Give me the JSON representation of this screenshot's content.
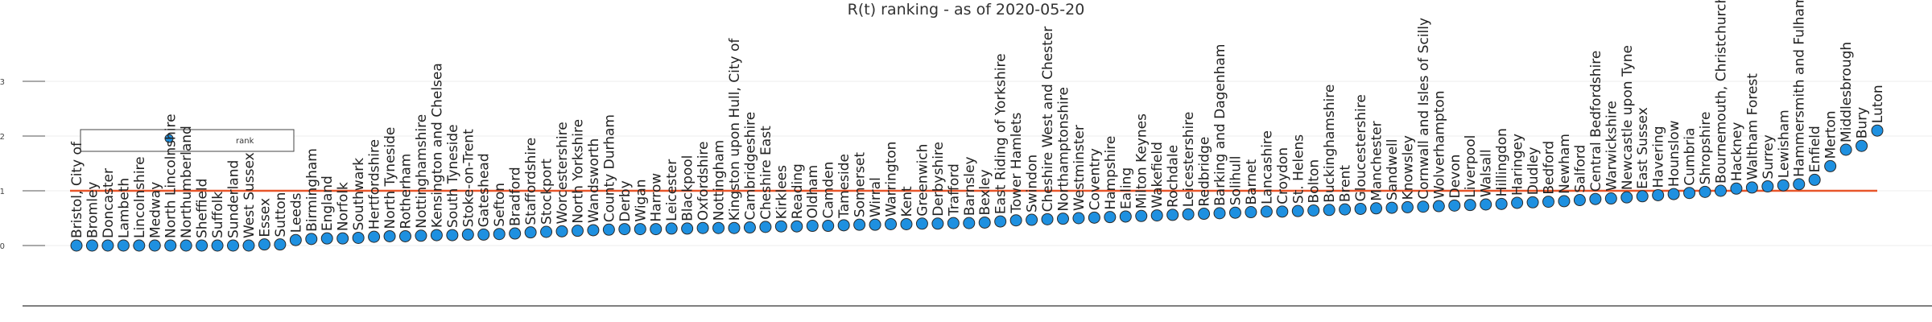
{
  "chart_data": {
    "type": "scatter",
    "title": "R(t) ranking - as of 2020-05-20",
    "ytick_labels": [
      "0",
      "1",
      "2",
      "3"
    ],
    "ylim": [
      -0.9,
      3.6
    ],
    "reference_line": {
      "y": 1.0,
      "color": "#e8562a"
    },
    "marker_color": "#1e90e0",
    "legend": {
      "entries": [
        "rank"
      ],
      "placement": "top-left"
    },
    "x_label_rotation": -90,
    "series": [
      {
        "name": "rank",
        "points": [
          {
            "label": "Bristol, City of",
            "y": 0.0
          },
          {
            "label": "Bromley",
            "y": 0.0
          },
          {
            "label": "Doncaster",
            "y": 0.0
          },
          {
            "label": "Lambeth",
            "y": 0.0
          },
          {
            "label": "Lincolnshire",
            "y": 0.0
          },
          {
            "label": "Medway",
            "y": 0.0
          },
          {
            "label": "North Lincolnshire",
            "y": 0.0
          },
          {
            "label": "Northumberland",
            "y": 0.0
          },
          {
            "label": "Sheffield",
            "y": 0.0
          },
          {
            "label": "Suffolk",
            "y": 0.0
          },
          {
            "label": "Sunderland",
            "y": 0.0
          },
          {
            "label": "West Sussex",
            "y": 0.0
          },
          {
            "label": "Essex",
            "y": 0.02
          },
          {
            "label": "Sutton",
            "y": 0.02
          },
          {
            "label": "Leeds",
            "y": 0.1
          },
          {
            "label": "Birmingham",
            "y": 0.12
          },
          {
            "label": "England",
            "y": 0.13
          },
          {
            "label": "Norfolk",
            "y": 0.13
          },
          {
            "label": "Southwark",
            "y": 0.14
          },
          {
            "label": "Hertfordshire",
            "y": 0.16
          },
          {
            "label": "North Tyneside",
            "y": 0.17
          },
          {
            "label": "Rotherham",
            "y": 0.17
          },
          {
            "label": "Nottinghamshire",
            "y": 0.18
          },
          {
            "label": "Kensington and Chelsea",
            "y": 0.19
          },
          {
            "label": "South Tyneside",
            "y": 0.19
          },
          {
            "label": "Stoke-on-Trent",
            "y": 0.2
          },
          {
            "label": "Gateshead",
            "y": 0.2
          },
          {
            "label": "Sefton",
            "y": 0.21
          },
          {
            "label": "Bradford",
            "y": 0.22
          },
          {
            "label": "Staffordshire",
            "y": 0.24
          },
          {
            "label": "Stockport",
            "y": 0.25
          },
          {
            "label": "Worcestershire",
            "y": 0.26
          },
          {
            "label": "North Yorkshire",
            "y": 0.27
          },
          {
            "label": "Wandsworth",
            "y": 0.28
          },
          {
            "label": "County Durham",
            "y": 0.29
          },
          {
            "label": "Derby",
            "y": 0.3
          },
          {
            "label": "Wigan",
            "y": 0.3
          },
          {
            "label": "Harrow",
            "y": 0.3
          },
          {
            "label": "Leicester",
            "y": 0.31
          },
          {
            "label": "Blackpool",
            "y": 0.31
          },
          {
            "label": "Oxfordshire",
            "y": 0.32
          },
          {
            "label": "Nottingham",
            "y": 0.32
          },
          {
            "label": "Kingston upon Hull, City of",
            "y": 0.32
          },
          {
            "label": "Cambridgeshire",
            "y": 0.33
          },
          {
            "label": "Cheshire East",
            "y": 0.34
          },
          {
            "label": "Kirklees",
            "y": 0.35
          },
          {
            "label": "Reading",
            "y": 0.35
          },
          {
            "label": "Oldham",
            "y": 0.36
          },
          {
            "label": "Camden",
            "y": 0.36
          },
          {
            "label": "Tameside",
            "y": 0.37
          },
          {
            "label": "Somerset",
            "y": 0.38
          },
          {
            "label": "Wirral",
            "y": 0.38
          },
          {
            "label": "Warrington",
            "y": 0.39
          },
          {
            "label": "Kent",
            "y": 0.39
          },
          {
            "label": "Greenwich",
            "y": 0.4
          },
          {
            "label": "Derbyshire",
            "y": 0.4
          },
          {
            "label": "Trafford",
            "y": 0.41
          },
          {
            "label": "Barnsley",
            "y": 0.41
          },
          {
            "label": "Bexley",
            "y": 0.42
          },
          {
            "label": "East Riding of Yorkshire",
            "y": 0.44
          },
          {
            "label": "Tower Hamlets",
            "y": 0.46
          },
          {
            "label": "Swindon",
            "y": 0.47
          },
          {
            "label": "Cheshire West and Chester",
            "y": 0.48
          },
          {
            "label": "Northamptonshire",
            "y": 0.49
          },
          {
            "label": "Westminster",
            "y": 0.5
          },
          {
            "label": "Coventry",
            "y": 0.51
          },
          {
            "label": "Hampshire",
            "y": 0.52
          },
          {
            "label": "Ealing",
            "y": 0.53
          },
          {
            "label": "Milton Keynes",
            "y": 0.54
          },
          {
            "label": "Wakefield",
            "y": 0.55
          },
          {
            "label": "Rochdale",
            "y": 0.56
          },
          {
            "label": "Leicestershire",
            "y": 0.57
          },
          {
            "label": "Redbridge",
            "y": 0.58
          },
          {
            "label": "Barking and Dagenham",
            "y": 0.59
          },
          {
            "label": "Solihull",
            "y": 0.6
          },
          {
            "label": "Barnet",
            "y": 0.61
          },
          {
            "label": "Lancashire",
            "y": 0.62
          },
          {
            "label": "Croydon",
            "y": 0.62
          },
          {
            "label": "St. Helens",
            "y": 0.63
          },
          {
            "label": "Bolton",
            "y": 0.64
          },
          {
            "label": "Buckinghamshire",
            "y": 0.65
          },
          {
            "label": "Brent",
            "y": 0.66
          },
          {
            "label": "Gloucestershire",
            "y": 0.67
          },
          {
            "label": "Manchester",
            "y": 0.68
          },
          {
            "label": "Sandwell",
            "y": 0.69
          },
          {
            "label": "Knowsley",
            "y": 0.7
          },
          {
            "label": "Cornwall and Isles of Scilly",
            "y": 0.71
          },
          {
            "label": "Wolverhampton",
            "y": 0.72
          },
          {
            "label": "Devon",
            "y": 0.73
          },
          {
            "label": "Liverpool",
            "y": 0.74
          },
          {
            "label": "Walsall",
            "y": 0.75
          },
          {
            "label": "Hillingdon",
            "y": 0.76
          },
          {
            "label": "Haringey",
            "y": 0.78
          },
          {
            "label": "Dudley",
            "y": 0.79
          },
          {
            "label": "Bedford",
            "y": 0.8
          },
          {
            "label": "Newham",
            "y": 0.81
          },
          {
            "label": "Salford",
            "y": 0.83
          },
          {
            "label": "Central Bedfordshire",
            "y": 0.85
          },
          {
            "label": "Warwickshire",
            "y": 0.86
          },
          {
            "label": "Newcastle upon Tyne",
            "y": 0.88
          },
          {
            "label": "East Sussex",
            "y": 0.9
          },
          {
            "label": "Havering",
            "y": 0.92
          },
          {
            "label": "Hounslow",
            "y": 0.94
          },
          {
            "label": "Cumbria",
            "y": 0.96
          },
          {
            "label": "Shropshire",
            "y": 0.98
          },
          {
            "label": "Bournemouth, Christchurch and Poole",
            "y": 1.0
          },
          {
            "label": "Hackney",
            "y": 1.04
          },
          {
            "label": "Waltham Forest",
            "y": 1.06
          },
          {
            "label": "Surrey",
            "y": 1.08
          },
          {
            "label": "Lewisham",
            "y": 1.1
          },
          {
            "label": "Hammersmith and Fulham",
            "y": 1.12
          },
          {
            "label": "Enfield",
            "y": 1.2
          },
          {
            "label": "Merton",
            "y": 1.45
          },
          {
            "label": "Middlesbrough",
            "y": 1.75
          },
          {
            "label": "Bury",
            "y": 1.82
          },
          {
            "label": "Luton",
            "y": 2.1
          }
        ]
      }
    ]
  }
}
